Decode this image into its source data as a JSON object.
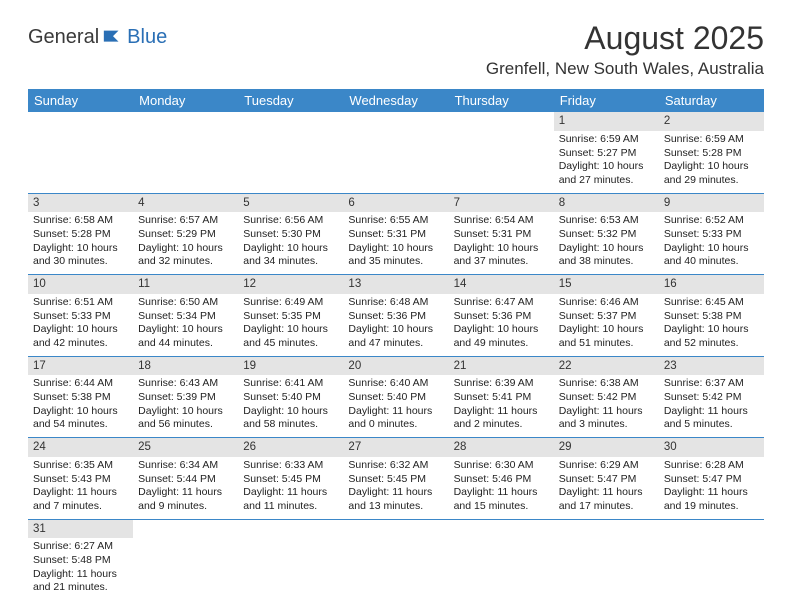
{
  "logo": {
    "dark": "General",
    "blue": "Blue"
  },
  "title": "August 2025",
  "location": "Grenfell, New South Wales, Australia",
  "weekdays": [
    "Sunday",
    "Monday",
    "Tuesday",
    "Wednesday",
    "Thursday",
    "Friday",
    "Saturday"
  ],
  "colors": {
    "header_bg": "#3b87c8",
    "header_text": "#ffffff",
    "daynum_bg": "#e4e4e4",
    "border": "#3b87c8",
    "title_text": "#333333",
    "logo_dark": "#3a3a3a",
    "logo_blue": "#2a6fb5",
    "body_text": "#222222",
    "background": "#ffffff"
  },
  "fonts": {
    "month_title_pt": 32,
    "location_pt": 17,
    "weekday_pt": 13,
    "cell_pt": 10.5,
    "daynum_pt": 11.5,
    "logo_pt": 20
  },
  "first_weekday_index": 5,
  "days": [
    {
      "n": 1,
      "sr": "6:59 AM",
      "ss": "5:27 PM",
      "dl": "10 hours and 27 minutes."
    },
    {
      "n": 2,
      "sr": "6:59 AM",
      "ss": "5:28 PM",
      "dl": "10 hours and 29 minutes."
    },
    {
      "n": 3,
      "sr": "6:58 AM",
      "ss": "5:28 PM",
      "dl": "10 hours and 30 minutes."
    },
    {
      "n": 4,
      "sr": "6:57 AM",
      "ss": "5:29 PM",
      "dl": "10 hours and 32 minutes."
    },
    {
      "n": 5,
      "sr": "6:56 AM",
      "ss": "5:30 PM",
      "dl": "10 hours and 34 minutes."
    },
    {
      "n": 6,
      "sr": "6:55 AM",
      "ss": "5:31 PM",
      "dl": "10 hours and 35 minutes."
    },
    {
      "n": 7,
      "sr": "6:54 AM",
      "ss": "5:31 PM",
      "dl": "10 hours and 37 minutes."
    },
    {
      "n": 8,
      "sr": "6:53 AM",
      "ss": "5:32 PM",
      "dl": "10 hours and 38 minutes."
    },
    {
      "n": 9,
      "sr": "6:52 AM",
      "ss": "5:33 PM",
      "dl": "10 hours and 40 minutes."
    },
    {
      "n": 10,
      "sr": "6:51 AM",
      "ss": "5:33 PM",
      "dl": "10 hours and 42 minutes."
    },
    {
      "n": 11,
      "sr": "6:50 AM",
      "ss": "5:34 PM",
      "dl": "10 hours and 44 minutes."
    },
    {
      "n": 12,
      "sr": "6:49 AM",
      "ss": "5:35 PM",
      "dl": "10 hours and 45 minutes."
    },
    {
      "n": 13,
      "sr": "6:48 AM",
      "ss": "5:36 PM",
      "dl": "10 hours and 47 minutes."
    },
    {
      "n": 14,
      "sr": "6:47 AM",
      "ss": "5:36 PM",
      "dl": "10 hours and 49 minutes."
    },
    {
      "n": 15,
      "sr": "6:46 AM",
      "ss": "5:37 PM",
      "dl": "10 hours and 51 minutes."
    },
    {
      "n": 16,
      "sr": "6:45 AM",
      "ss": "5:38 PM",
      "dl": "10 hours and 52 minutes."
    },
    {
      "n": 17,
      "sr": "6:44 AM",
      "ss": "5:38 PM",
      "dl": "10 hours and 54 minutes."
    },
    {
      "n": 18,
      "sr": "6:43 AM",
      "ss": "5:39 PM",
      "dl": "10 hours and 56 minutes."
    },
    {
      "n": 19,
      "sr": "6:41 AM",
      "ss": "5:40 PM",
      "dl": "10 hours and 58 minutes."
    },
    {
      "n": 20,
      "sr": "6:40 AM",
      "ss": "5:40 PM",
      "dl": "11 hours and 0 minutes."
    },
    {
      "n": 21,
      "sr": "6:39 AM",
      "ss": "5:41 PM",
      "dl": "11 hours and 2 minutes."
    },
    {
      "n": 22,
      "sr": "6:38 AM",
      "ss": "5:42 PM",
      "dl": "11 hours and 3 minutes."
    },
    {
      "n": 23,
      "sr": "6:37 AM",
      "ss": "5:42 PM",
      "dl": "11 hours and 5 minutes."
    },
    {
      "n": 24,
      "sr": "6:35 AM",
      "ss": "5:43 PM",
      "dl": "11 hours and 7 minutes."
    },
    {
      "n": 25,
      "sr": "6:34 AM",
      "ss": "5:44 PM",
      "dl": "11 hours and 9 minutes."
    },
    {
      "n": 26,
      "sr": "6:33 AM",
      "ss": "5:45 PM",
      "dl": "11 hours and 11 minutes."
    },
    {
      "n": 27,
      "sr": "6:32 AM",
      "ss": "5:45 PM",
      "dl": "11 hours and 13 minutes."
    },
    {
      "n": 28,
      "sr": "6:30 AM",
      "ss": "5:46 PM",
      "dl": "11 hours and 15 minutes."
    },
    {
      "n": 29,
      "sr": "6:29 AM",
      "ss": "5:47 PM",
      "dl": "11 hours and 17 minutes."
    },
    {
      "n": 30,
      "sr": "6:28 AM",
      "ss": "5:47 PM",
      "dl": "11 hours and 19 minutes."
    },
    {
      "n": 31,
      "sr": "6:27 AM",
      "ss": "5:48 PM",
      "dl": "11 hours and 21 minutes."
    }
  ],
  "labels": {
    "sunrise": "Sunrise:",
    "sunset": "Sunset:",
    "daylight": "Daylight:"
  }
}
